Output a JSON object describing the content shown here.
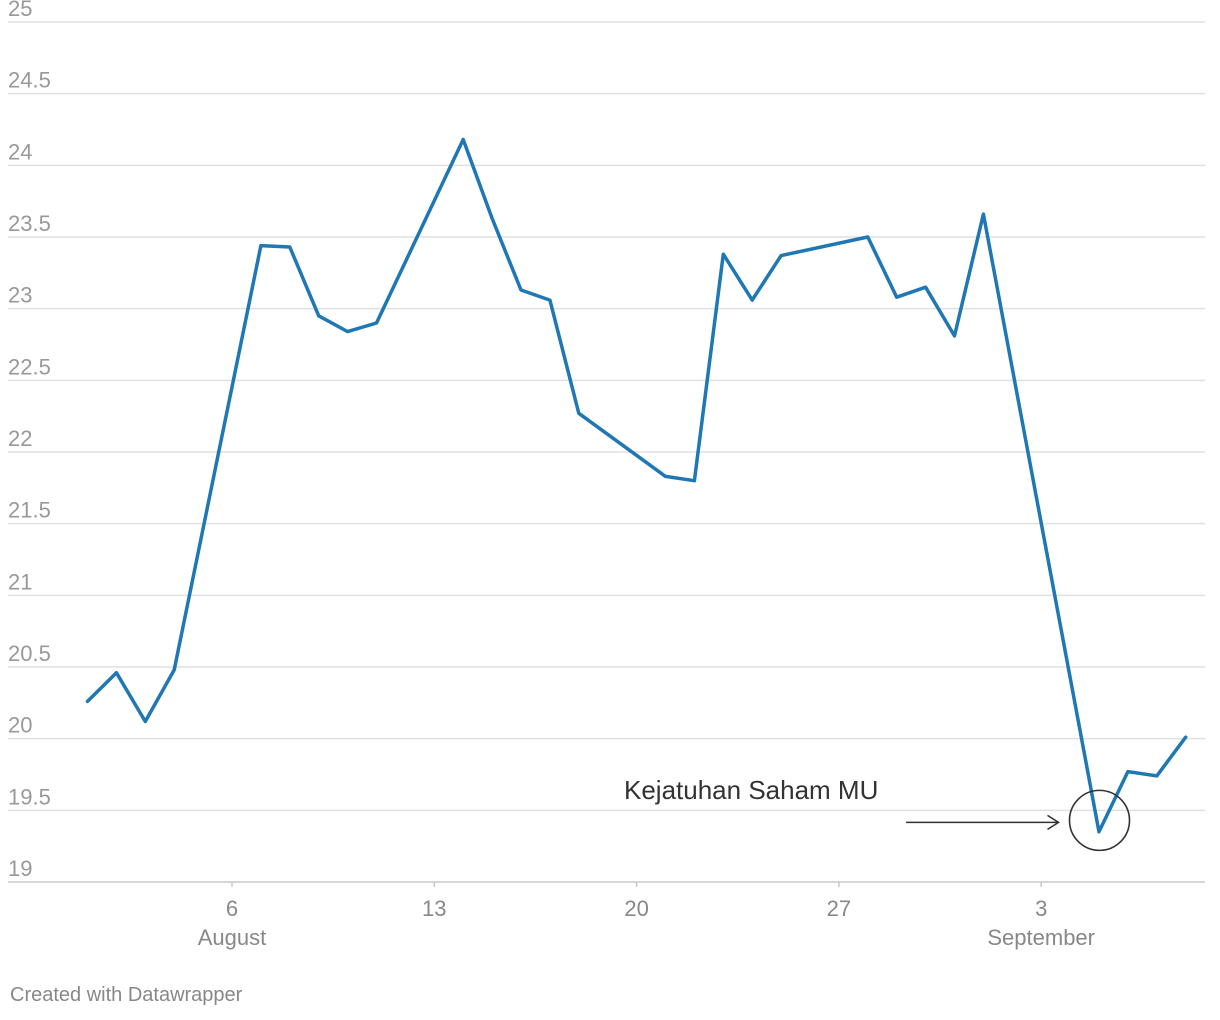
{
  "chart_data": {
    "type": "line",
    "title": "",
    "xlabel": "",
    "ylabel": "",
    "ylim": [
      19,
      25
    ],
    "y_ticks": [
      "25",
      "24.5",
      "24",
      "23.5",
      "23",
      "22.5",
      "22",
      "21.5",
      "21",
      "20.5",
      "20",
      "19.5",
      "19"
    ],
    "x_ticks": [
      {
        "date": "2018-08-06",
        "label": "6",
        "month": "August"
      },
      {
        "date": "2018-08-13",
        "label": "13",
        "month": ""
      },
      {
        "date": "2018-08-20",
        "label": "20",
        "month": ""
      },
      {
        "date": "2018-08-27",
        "label": "27",
        "month": ""
      },
      {
        "date": "2018-09-03",
        "label": "3",
        "month": "September"
      }
    ],
    "grid": true,
    "line_color": "#1f77b4",
    "series": [
      {
        "points": [
          {
            "x": "2018-08-01",
            "y": 20.26
          },
          {
            "x": "2018-08-02",
            "y": 20.46
          },
          {
            "x": "2018-08-03",
            "y": 20.12
          },
          {
            "x": "2018-08-04",
            "y": 20.48
          },
          {
            "x": "2018-08-07",
            "y": 23.44
          },
          {
            "x": "2018-08-08",
            "y": 23.43
          },
          {
            "x": "2018-08-09",
            "y": 22.95
          },
          {
            "x": "2018-08-10",
            "y": 22.84
          },
          {
            "x": "2018-08-11",
            "y": 22.9
          },
          {
            "x": "2018-08-14",
            "y": 24.18
          },
          {
            "x": "2018-08-15",
            "y": 23.63
          },
          {
            "x": "2018-08-16",
            "y": 23.13
          },
          {
            "x": "2018-08-17",
            "y": 23.06
          },
          {
            "x": "2018-08-18",
            "y": 22.27
          },
          {
            "x": "2018-08-21",
            "y": 21.83
          },
          {
            "x": "2018-08-22",
            "y": 21.8
          },
          {
            "x": "2018-08-23",
            "y": 23.38
          },
          {
            "x": "2018-08-24",
            "y": 23.06
          },
          {
            "x": "2018-08-25",
            "y": 23.37
          },
          {
            "x": "2018-08-28",
            "y": 23.5
          },
          {
            "x": "2018-08-29",
            "y": 23.08
          },
          {
            "x": "2018-08-30",
            "y": 23.15
          },
          {
            "x": "2018-08-31",
            "y": 22.81
          },
          {
            "x": "2018-09-01",
            "y": 23.66
          },
          {
            "x": "2018-09-05",
            "y": 19.35
          },
          {
            "x": "2018-09-06",
            "y": 19.77
          },
          {
            "x": "2018-09-07",
            "y": 19.74
          },
          {
            "x": "2018-09-08",
            "y": 20.01
          }
        ]
      }
    ],
    "annotation": {
      "text": "Kejatuhan Saham MU",
      "x": "2018-09-05",
      "y": 19.43
    }
  },
  "footer": {
    "credit": "Created with Datawrapper"
  }
}
